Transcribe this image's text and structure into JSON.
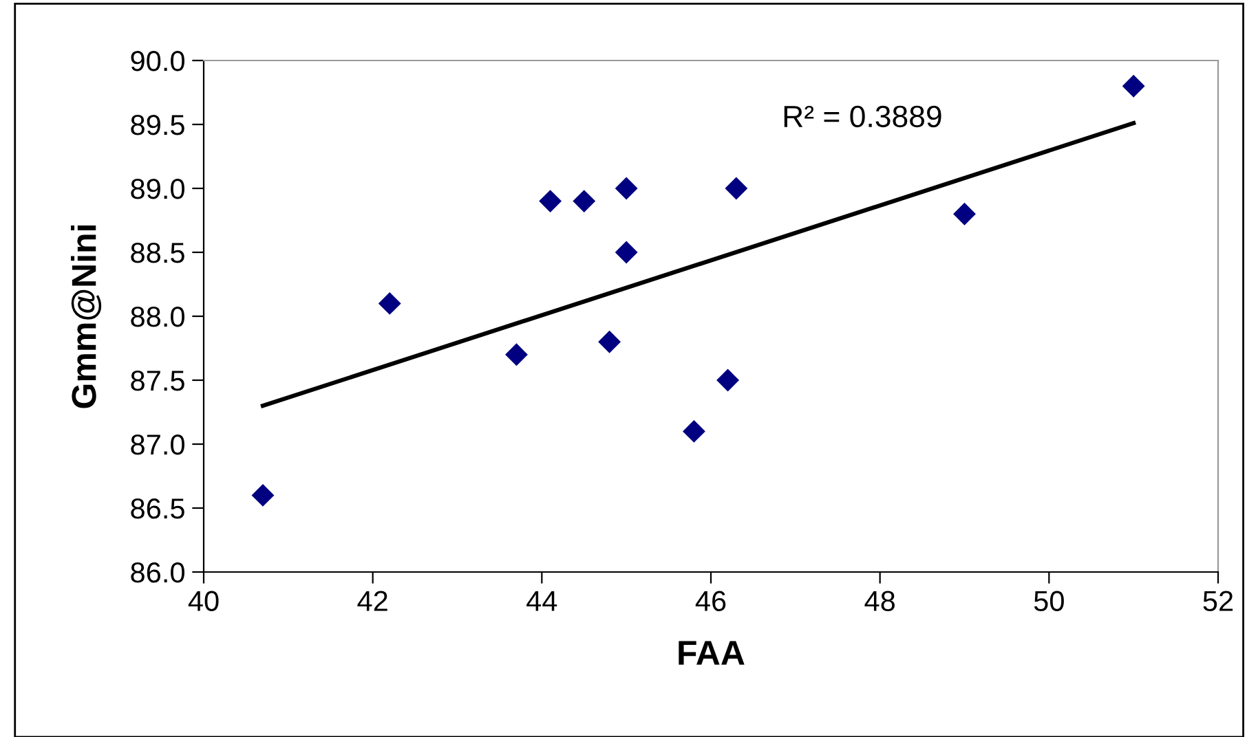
{
  "chart_data": {
    "type": "scatter",
    "xlabel": "FAA",
    "ylabel": "Gmm@Nini",
    "series": [
      {
        "color": "#000080",
        "marker": "diamond",
        "x": [
          40.7,
          42.2,
          43.7,
          44.1,
          44.5,
          44.8,
          45.0,
          45.0,
          45.8,
          46.2,
          46.3,
          49.0,
          51.0
        ],
        "values": [
          86.6,
          88.1,
          87.7,
          88.9,
          88.9,
          87.8,
          89.0,
          88.5,
          87.1,
          87.5,
          89.0,
          88.8,
          89.8
        ]
      },
      {
        "type": "line",
        "color": "#000000",
        "x": [
          40.7,
          51.0
        ],
        "values": [
          87.3,
          89.51
        ]
      }
    ],
    "annotations": [
      "R² = 0.3889"
    ],
    "xlim": [
      40,
      52
    ],
    "xticks": [
      40,
      42,
      44,
      46,
      48,
      50,
      52
    ],
    "ylim": [
      86.0,
      90.0
    ],
    "yticks": [
      {
        "value": 86.0,
        "label": "86.0"
      },
      {
        "value": 86.5,
        "label": "86.5"
      },
      {
        "value": 87.0,
        "label": "87.0"
      },
      {
        "value": 87.5,
        "label": "87.5"
      },
      {
        "value": 88.0,
        "label": "88.0"
      },
      {
        "value": 88.5,
        "label": "88.5"
      },
      {
        "value": 89.0,
        "label": "89.0"
      },
      {
        "value": 89.5,
        "label": "89.5"
      },
      {
        "value": 90.0,
        "label": "90.0"
      }
    ],
    "grid": false,
    "legend": false
  }
}
